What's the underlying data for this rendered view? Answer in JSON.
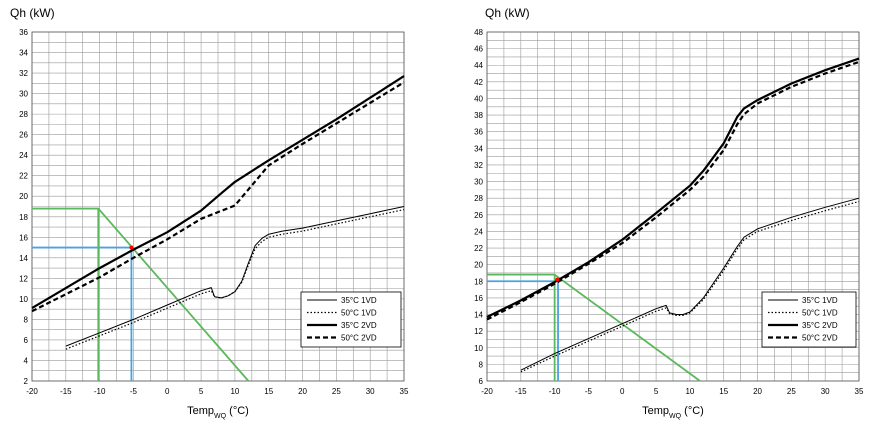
{
  "chart_data": [
    {
      "type": "line",
      "title": "Qh (kW)",
      "xlabel_main": "Temp",
      "xlabel_sub": "WQ",
      "xlabel_unit": " (°C)",
      "xlim": [
        -20,
        35
      ],
      "ylim": [
        2,
        36
      ],
      "x_ticks": [
        -20,
        -15,
        -10,
        -5,
        0,
        5,
        10,
        15,
        20,
        25,
        30,
        35
      ],
      "y_ticks": [
        2,
        4,
        6,
        8,
        10,
        12,
        14,
        16,
        18,
        20,
        22,
        24,
        26,
        28,
        30,
        32,
        34,
        36
      ],
      "grid": true,
      "legend_position": "lower-right",
      "series": [
        {
          "name": "35°C 1VD",
          "style": "thin-solid",
          "x": [
            -15,
            -10,
            -5,
            0,
            5,
            6.5,
            7,
            8,
            9,
            10,
            11,
            12,
            13,
            14,
            15,
            17,
            20,
            25,
            30,
            35
          ],
          "y": [
            5.4,
            6.7,
            8.0,
            9.4,
            10.8,
            11.1,
            10.2,
            10.1,
            10.3,
            10.7,
            11.7,
            13.5,
            15.2,
            15.9,
            16.3,
            16.6,
            16.9,
            17.6,
            18.3,
            19.0
          ]
        },
        {
          "name": "50°C 1VD",
          "style": "thin-dotted",
          "x": [
            -15,
            -10,
            -5,
            0,
            5,
            6.5,
            7,
            8,
            9,
            10,
            11,
            12,
            13,
            14,
            15,
            17,
            20,
            25,
            30,
            35
          ],
          "y": [
            5.1,
            6.4,
            7.7,
            9.1,
            10.5,
            10.8,
            10.2,
            10.1,
            10.3,
            10.7,
            11.6,
            13.3,
            14.9,
            15.6,
            16.0,
            16.3,
            16.6,
            17.3,
            18.0,
            18.7
          ]
        },
        {
          "name": "35°C 2VD",
          "style": "thick-solid",
          "x": [
            -20,
            -10,
            -5,
            0,
            5,
            8,
            10,
            15,
            20,
            25,
            30,
            35
          ],
          "y": [
            9.1,
            13.0,
            14.8,
            16.5,
            18.6,
            20.3,
            21.4,
            23.5,
            25.5,
            27.5,
            29.6,
            31.7
          ]
        },
        {
          "name": "50°C 2VD",
          "style": "thick-dashed",
          "x": [
            -20,
            -10,
            -5,
            0,
            5,
            10,
            15,
            20,
            25,
            30,
            35
          ],
          "y": [
            8.8,
            12.1,
            14.0,
            15.8,
            17.8,
            19.1,
            23.0,
            25.1,
            27.1,
            29.1,
            31.1
          ]
        }
      ],
      "reference_lines": {
        "green": {
          "color": "#5cb85c",
          "horizontal_y": 18.8,
          "vertical_x": -10.2,
          "path_x": [
            -20,
            -10.2,
            12
          ],
          "path_y": [
            18.8,
            18.8,
            2
          ]
        },
        "blue": {
          "color": "#4aa3df",
          "horizontal_y": 15.0,
          "vertical_x": -5.3
        }
      },
      "intersection_point": {
        "x": -5.3,
        "y": 15.0,
        "color": "#ff0000"
      }
    },
    {
      "type": "line",
      "title": "Qh (kW)",
      "xlabel_main": "Temp",
      "xlabel_sub": "WQ",
      "xlabel_unit": " (°C)",
      "xlim": [
        -20,
        35
      ],
      "ylim": [
        6,
        48
      ],
      "x_ticks": [
        -20,
        -15,
        -10,
        -5,
        0,
        5,
        10,
        15,
        20,
        25,
        30,
        35
      ],
      "y_ticks": [
        6,
        8,
        10,
        12,
        14,
        16,
        18,
        20,
        22,
        24,
        26,
        28,
        30,
        32,
        34,
        36,
        38,
        40,
        42,
        44,
        46,
        48
      ],
      "grid": true,
      "legend_position": "lower-right",
      "series": [
        {
          "name": "35°C 1VD",
          "style": "thin-solid",
          "x": [
            -15,
            -10,
            -5,
            0,
            5,
            6.5,
            7,
            8,
            9,
            10,
            12,
            15,
            17,
            18,
            20,
            25,
            30,
            35
          ],
          "y": [
            7.3,
            9.3,
            11.1,
            12.9,
            14.7,
            15.1,
            14.2,
            14.0,
            14.0,
            14.3,
            16.0,
            19.6,
            22.2,
            23.3,
            24.3,
            25.7,
            26.9,
            28.0
          ]
        },
        {
          "name": "50°C 1VD",
          "style": "thin-dotted",
          "x": [
            -15,
            -10,
            -5,
            0,
            5,
            6.5,
            7,
            8,
            9,
            10,
            12,
            15,
            17,
            18,
            20,
            25,
            30,
            35
          ],
          "y": [
            7.1,
            9.0,
            10.8,
            12.6,
            14.4,
            14.8,
            14.1,
            13.9,
            13.9,
            14.2,
            15.8,
            19.3,
            21.9,
            23.0,
            24.0,
            25.3,
            26.5,
            27.6
          ]
        },
        {
          "name": "35°C 2VD",
          "style": "thick-solid",
          "x": [
            -20,
            -15,
            -10,
            -5,
            0,
            5,
            10,
            12,
            15,
            17,
            18,
            20,
            25,
            30,
            35
          ],
          "y": [
            13.7,
            15.7,
            17.9,
            20.3,
            23.0,
            26.2,
            29.5,
            31.3,
            34.6,
            37.8,
            38.8,
            39.8,
            41.8,
            43.4,
            44.8
          ]
        },
        {
          "name": "50°C 2VD",
          "style": "thick-dashed",
          "x": [
            -20,
            -15,
            -10,
            -5,
            0,
            5,
            10,
            12,
            15,
            17,
            18,
            20,
            25,
            30,
            35
          ],
          "y": [
            13.4,
            15.5,
            17.7,
            20.1,
            22.6,
            25.7,
            29.0,
            30.6,
            33.8,
            36.9,
            38.1,
            39.4,
            41.4,
            43.0,
            44.4
          ]
        }
      ],
      "reference_lines": {
        "green": {
          "color": "#5cb85c",
          "horizontal_y": 18.8,
          "vertical_x": -10.0,
          "path_x": [
            -20,
            -10.0,
            11.5
          ],
          "path_y": [
            18.8,
            18.8,
            6
          ]
        },
        "blue": {
          "color": "#4aa3df",
          "horizontal_y": 18.0,
          "vertical_x": -9.5
        }
      },
      "intersection_point": {
        "x": -9.6,
        "y": 18.2,
        "color": "#ff0000"
      }
    }
  ]
}
